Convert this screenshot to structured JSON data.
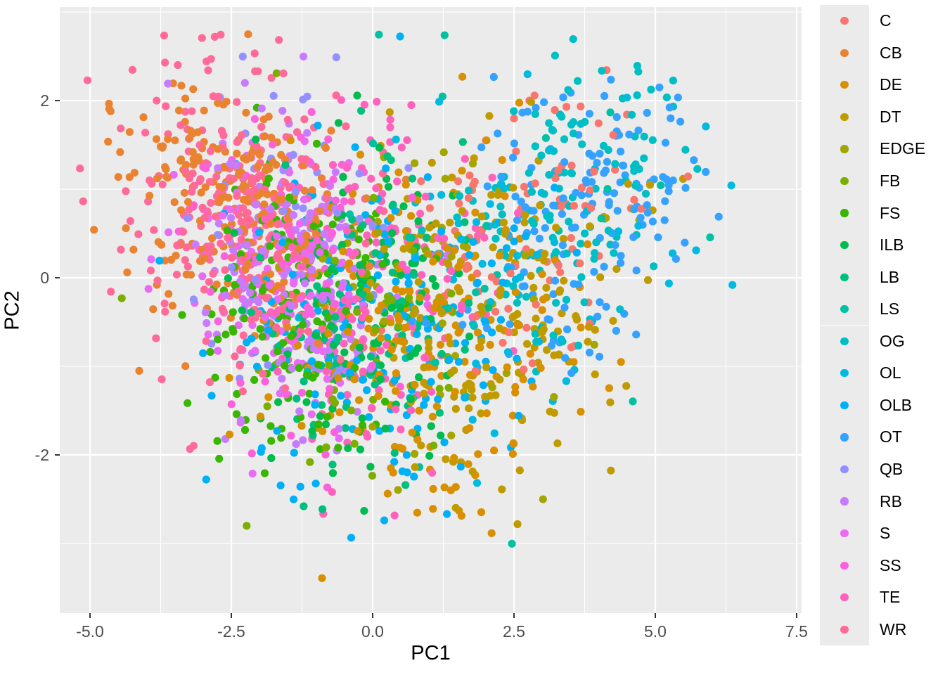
{
  "chart_data": {
    "type": "scatter",
    "title": "",
    "xlabel": "PC1",
    "ylabel": "PC2",
    "xlim": [
      -5.535,
      7.587
    ],
    "ylim": [
      -3.786,
      3.056
    ],
    "x_ticks": [
      -5.0,
      -2.5,
      0.0,
      2.5,
      5.0,
      7.5
    ],
    "x_tick_labels": [
      "-5.0",
      "-2.5",
      "0.0",
      "2.5",
      "5.0",
      "7.5"
    ],
    "x_minor_ticks": [
      -3.75,
      -1.25,
      1.25,
      3.75,
      6.25
    ],
    "y_ticks": [
      2,
      0,
      -2
    ],
    "y_tick_labels": [
      "2",
      "0",
      "-2"
    ],
    "y_minor_ticks": [
      3,
      1,
      -1,
      -3
    ],
    "grid": true,
    "legend_position": "right",
    "point_radius_px": 5.6,
    "seed": 1337,
    "clip": {
      "x": [
        -5.25,
        7.3
      ],
      "y": [
        -3.55,
        2.8
      ]
    },
    "style": {
      "panel_bg": "#ebebeb",
      "grid_color": "#ffffff",
      "tick_color": "#333333",
      "tick_label_color": "#4d4d4d",
      "axis_title_color": "#000000",
      "figure_bg": "#ffffff"
    },
    "series": [
      {
        "name": "C",
        "color": "#F8766D",
        "n": 85,
        "mean": [
          2.9,
          0.5
        ],
        "sd": [
          1.15,
          0.8
        ],
        "rho": 0.15
      },
      {
        "name": "CB",
        "color": "#EA8331",
        "n": 240,
        "mean": [
          -2.45,
          0.8
        ],
        "sd": [
          0.95,
          0.75
        ],
        "rho": -0.25
      },
      {
        "name": "DE",
        "color": "#D89000",
        "n": 200,
        "mean": [
          0.9,
          -0.75
        ],
        "sd": [
          1.2,
          1.05
        ],
        "rho": 0.0
      },
      {
        "name": "DT",
        "color": "#C09B00",
        "n": 170,
        "mean": [
          2.3,
          -0.55
        ],
        "sd": [
          1.1,
          0.95
        ],
        "rho": 0.1
      },
      {
        "name": "EDGE",
        "color": "#A3A500",
        "n": 45,
        "mean": [
          0.8,
          -0.3
        ],
        "sd": [
          1.2,
          0.9
        ],
        "rho": 0.0
      },
      {
        "name": "FB",
        "color": "#7CAE00",
        "n": 55,
        "mean": [
          -0.45,
          -0.6
        ],
        "sd": [
          0.95,
          0.85
        ],
        "rho": 0.0
      },
      {
        "name": "FS",
        "color": "#39B600",
        "n": 135,
        "mean": [
          -1.4,
          -0.35
        ],
        "sd": [
          0.9,
          0.9
        ],
        "rho": 0.0
      },
      {
        "name": "ILB",
        "color": "#00BB4E",
        "n": 135,
        "mean": [
          -0.3,
          -0.4
        ],
        "sd": [
          1.0,
          0.85
        ],
        "rho": 0.0
      },
      {
        "name": "LB",
        "color": "#00BF7D",
        "n": 85,
        "mean": [
          -0.4,
          -0.5
        ],
        "sd": [
          1.1,
          0.9
        ],
        "rho": 0.0
      },
      {
        "name": "LS",
        "color": "#00C1A3",
        "n": 28,
        "mean": [
          2.0,
          0.0
        ],
        "sd": [
          2.1,
          1.5
        ],
        "rho": 0.1
      },
      {
        "name": "OG",
        "color": "#00BFC4",
        "n": 130,
        "mean": [
          3.3,
          0.8
        ],
        "sd": [
          1.0,
          0.8
        ],
        "rho": 0.3
      },
      {
        "name": "OL",
        "color": "#00BAE0",
        "n": 55,
        "mean": [
          2.8,
          0.3
        ],
        "sd": [
          1.5,
          0.95
        ],
        "rho": 0.2
      },
      {
        "name": "OLB",
        "color": "#00B0F6",
        "n": 180,
        "mean": [
          0.1,
          -0.45
        ],
        "sd": [
          1.45,
          0.95
        ],
        "rho": 0.05
      },
      {
        "name": "OT",
        "color": "#35A2FF",
        "n": 155,
        "mean": [
          3.6,
          0.6
        ],
        "sd": [
          1.1,
          0.85
        ],
        "rho": 0.3
      },
      {
        "name": "QB",
        "color": "#9590FF",
        "n": 50,
        "mean": [
          -1.1,
          0.6
        ],
        "sd": [
          1.05,
          0.85
        ],
        "rho": 0.0
      },
      {
        "name": "RB",
        "color": "#C77CFF",
        "n": 160,
        "mean": [
          -1.4,
          0.1
        ],
        "sd": [
          0.9,
          0.85
        ],
        "rho": -0.1
      },
      {
        "name": "S",
        "color": "#E76BF3",
        "n": 100,
        "mean": [
          -1.6,
          -0.1
        ],
        "sd": [
          0.9,
          0.8
        ],
        "rho": -0.1
      },
      {
        "name": "SS",
        "color": "#FA62DB",
        "n": 110,
        "mean": [
          -1.5,
          0.15
        ],
        "sd": [
          0.9,
          0.8
        ],
        "rho": -0.15
      },
      {
        "name": "TE",
        "color": "#FF62BC",
        "n": 145,
        "mean": [
          0.3,
          -0.2
        ],
        "sd": [
          1.05,
          0.95
        ],
        "rho": 0.0
      },
      {
        "name": "WR",
        "color": "#FF6A98",
        "n": 260,
        "mean": [
          -2.3,
          0.65
        ],
        "sd": [
          1.05,
          0.9
        ],
        "rho": -0.25
      }
    ]
  },
  "legend": {
    "items": [
      {
        "label": "C",
        "color": "#F8766D"
      },
      {
        "label": "CB",
        "color": "#EA8331"
      },
      {
        "label": "DE",
        "color": "#D89000"
      },
      {
        "label": "DT",
        "color": "#C09B00"
      },
      {
        "label": "EDGE",
        "color": "#A3A500"
      },
      {
        "label": "FB",
        "color": "#7CAE00"
      },
      {
        "label": "FS",
        "color": "#39B600"
      },
      {
        "label": "ILB",
        "color": "#00BB4E"
      },
      {
        "label": "LB",
        "color": "#00BF7D"
      },
      {
        "label": "LS",
        "color": "#00C1A3"
      },
      {
        "label": "OG",
        "color": "#00BFC4"
      },
      {
        "label": "OL",
        "color": "#00BAE0"
      },
      {
        "label": "OLB",
        "color": "#00B0F6"
      },
      {
        "label": "OT",
        "color": "#35A2FF"
      },
      {
        "label": "QB",
        "color": "#9590FF"
      },
      {
        "label": "RB",
        "color": "#C77CFF"
      },
      {
        "label": "S",
        "color": "#E76BF3"
      },
      {
        "label": "SS",
        "color": "#FA62DB"
      },
      {
        "label": "TE",
        "color": "#FF62BC"
      },
      {
        "label": "WR",
        "color": "#FF6A98"
      }
    ]
  }
}
